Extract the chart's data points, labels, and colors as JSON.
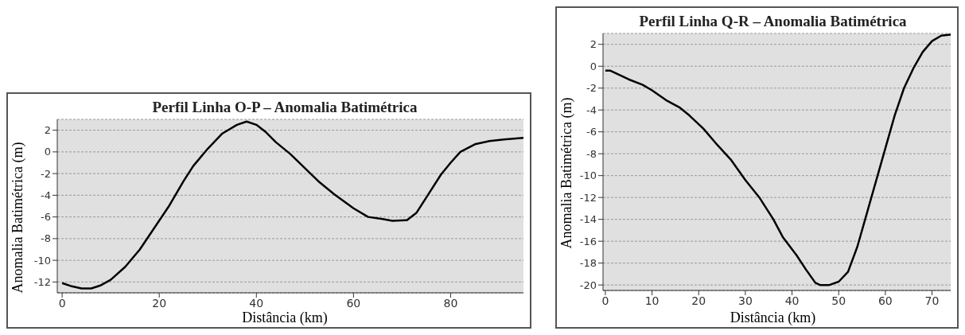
{
  "chart_data": [
    {
      "type": "line",
      "title": "Perfil Linha O-P – Anomalia Batimétrica",
      "xlabel": "Distância (km)",
      "ylabel": "Anomalia Batimétrica (m)",
      "x": [
        0,
        2,
        4,
        6,
        8,
        10,
        13,
        16,
        19,
        22,
        25,
        27,
        30,
        33,
        36,
        38,
        40,
        42,
        44,
        47,
        50,
        53,
        56,
        60,
        63,
        66,
        68,
        71,
        73,
        75,
        78,
        80,
        82,
        85,
        88,
        91,
        95
      ],
      "series": [
        {
          "color": "#000000",
          "values": [
            -12.1,
            -12.4,
            -12.6,
            -12.6,
            -12.3,
            -11.8,
            -10.6,
            -9,
            -7,
            -5,
            -2.7,
            -1.3,
            0.3,
            1.7,
            2.5,
            2.8,
            2.5,
            1.8,
            0.9,
            -0.2,
            -1.5,
            -2.8,
            -3.9,
            -5.2,
            -6,
            -6.2,
            -6.35,
            -6.3,
            -5.6,
            -4.2,
            -2.1,
            -1,
            0,
            0.7,
            1,
            1.15,
            1.3
          ]
        }
      ],
      "xlim": [
        -1,
        95
      ],
      "xticks": [
        0,
        20,
        40,
        60,
        80
      ],
      "ylim": [
        -13,
        3
      ],
      "yticks": [
        -12,
        -10,
        -8,
        -6,
        -4,
        -2,
        0,
        2
      ],
      "grid": "y",
      "marker": "none",
      "line_style": "solid"
    },
    {
      "type": "line",
      "title": "Perfil Linha Q-R – Anomalia Batimétrica",
      "xlabel": "Distância (km)",
      "ylabel": "Anomalia Batimétrica (m)",
      "x": [
        0,
        1,
        3,
        5,
        8,
        10,
        13,
        16,
        18,
        21,
        24,
        27,
        30,
        33,
        36,
        38,
        41,
        43,
        45,
        46,
        48,
        50,
        52,
        54,
        56,
        58,
        60,
        62,
        64,
        66,
        68,
        70,
        72,
        74
      ],
      "series": [
        {
          "color": "#000000",
          "values": [
            -0.4,
            -0.4,
            -0.8,
            -1.2,
            -1.7,
            -2.2,
            -3.1,
            -3.8,
            -4.5,
            -5.7,
            -7.2,
            -8.6,
            -10.4,
            -12,
            -14,
            -15.6,
            -17.3,
            -18.6,
            -19.8,
            -20,
            -20,
            -19.7,
            -18.8,
            -16.5,
            -13.5,
            -10.5,
            -7.5,
            -4.5,
            -2,
            -0.2,
            1.3,
            2.3,
            2.8,
            2.9
          ]
        }
      ],
      "xlim": [
        -0.5,
        74
      ],
      "xticks": [
        0,
        10,
        20,
        30,
        40,
        50,
        60,
        70
      ],
      "ylim": [
        -20.5,
        3
      ],
      "yticks": [
        -20,
        -18,
        -16,
        -14,
        -12,
        -10,
        -8,
        -6,
        -4,
        -2,
        0,
        2
      ],
      "grid": "y",
      "marker": "none",
      "line_style": "solid"
    }
  ]
}
